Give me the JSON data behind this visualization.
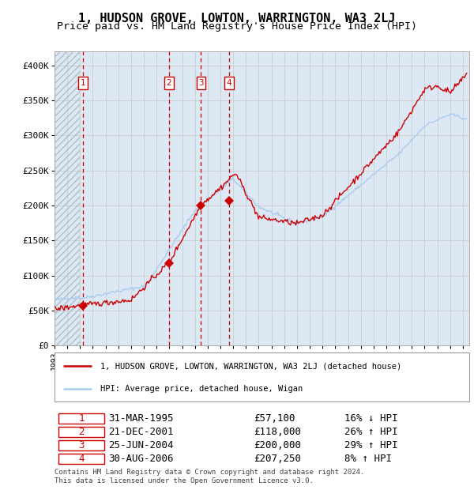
{
  "title": "1, HUDSON GROVE, LOWTON, WARRINGTON, WA3 2LJ",
  "subtitle": "Price paid vs. HM Land Registry's House Price Index (HPI)",
  "title_fontsize": 11,
  "subtitle_fontsize": 9.5,
  "ylabel_ticks": [
    "£0",
    "£50K",
    "£100K",
    "£150K",
    "£200K",
    "£250K",
    "£300K",
    "£350K",
    "£400K"
  ],
  "ytick_values": [
    0,
    50000,
    100000,
    150000,
    200000,
    250000,
    300000,
    350000,
    400000
  ],
  "ylim": [
    0,
    420000
  ],
  "xlim_start": 1993.0,
  "xlim_end": 2025.5,
  "grid_color": "#cccccc",
  "bg_color": "#dde8f5",
  "hatch_bg_color": "#c8d4e0",
  "sale_dates": [
    1995.25,
    2001.97,
    2004.48,
    2006.66
  ],
  "sale_prices": [
    57100,
    118000,
    200000,
    207250
  ],
  "sale_labels": [
    "1",
    "2",
    "3",
    "4"
  ],
  "legend_label_red": "1, HUDSON GROVE, LOWTON, WARRINGTON, WA3 2LJ (detached house)",
  "legend_label_blue": "HPI: Average price, detached house, Wigan",
  "table_rows": [
    {
      "num": "1",
      "date": "31-MAR-1995",
      "price": "£57,100",
      "change": "16% ↓ HPI"
    },
    {
      "num": "2",
      "date": "21-DEC-2001",
      "price": "£118,000",
      "change": "26% ↑ HPI"
    },
    {
      "num": "3",
      "date": "25-JUN-2004",
      "price": "£200,000",
      "change": "29% ↑ HPI"
    },
    {
      "num": "4",
      "date": "30-AUG-2006",
      "price": "£207,250",
      "change": "8% ↑ HPI"
    }
  ],
  "footer": "Contains HM Land Registry data © Crown copyright and database right 2024.\nThis data is licensed under the Open Government Licence v3.0.",
  "red_color": "#cc0000",
  "blue_color": "#aaccee"
}
